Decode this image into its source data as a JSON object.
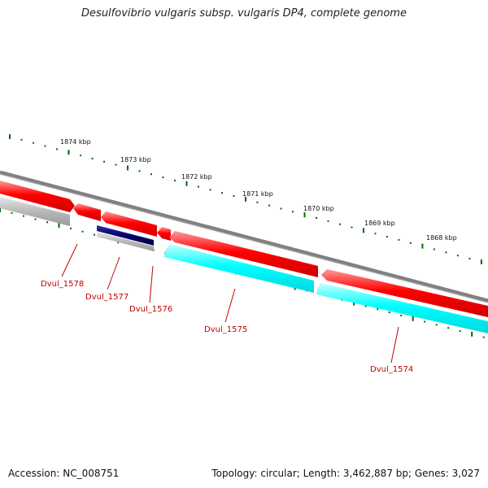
{
  "title": "Desulfovibrio vulgaris subsp. vulgaris DP4, complete genome",
  "footer": {
    "accession": "Accession: NC_008751",
    "topology": "Topology: circular; Length: 3,462,887 bp; Genes: 3,027"
  },
  "scale": {
    "labels": [
      "1874 kbp",
      "1873 kbp",
      "1872 kbp",
      "1871 kbp",
      "1870 kbp",
      "1869 kbp",
      "1868 kbp"
    ]
  },
  "genes": [
    {
      "label": "Dvul_1578"
    },
    {
      "label": "Dvul_1577"
    },
    {
      "label": "Dvul_1576"
    },
    {
      "label": "Dvul_1575"
    },
    {
      "label": "Dvul_1574"
    }
  ],
  "colors": {
    "forward_cds": "#ff0000",
    "reverse_cds": "#00ffff",
    "backbone": "#888888",
    "tick": "#006600",
    "label": "#c00000",
    "gray_feature": "#b0b0b0",
    "navy_feature": "#000066"
  }
}
